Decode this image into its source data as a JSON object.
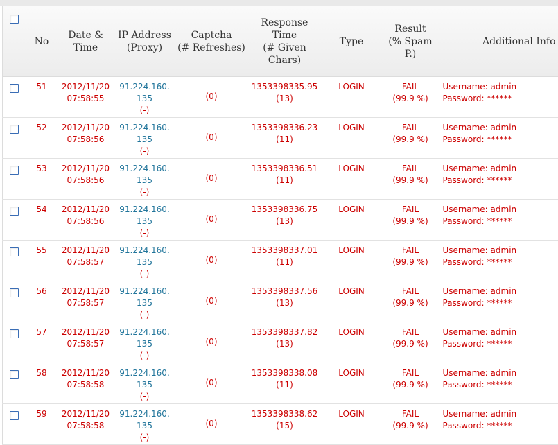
{
  "header": {
    "no": "No",
    "date_line1": "Date &",
    "date_line2": "Time",
    "ip_line1": "IP Address",
    "ip_line2": "(Proxy)",
    "captcha_line1": "Captcha",
    "captcha_line2": "(# Refreshes)",
    "resp_line1": "Response",
    "resp_line2": "Time",
    "resp_line3": "(# Given",
    "resp_line4": "Chars)",
    "type": "Type",
    "result_line1": "Result",
    "result_line2": "(% Spam",
    "result_line3": "P.)",
    "info": "Additional Info"
  },
  "rows": [
    {
      "no": "51",
      "date": "2012/11/20",
      "time": "07:58:55",
      "ip1": "91.224.160.",
      "ip2": "135",
      "proxy": "(-)",
      "captcha": "(0)",
      "response": "1353398335.95",
      "chars": "(13)",
      "type": "LOGIN",
      "result": "FAIL",
      "spam": "(99.9 %)",
      "username": "Username: admin",
      "password": "Password: ******"
    },
    {
      "no": "52",
      "date": "2012/11/20",
      "time": "07:58:56",
      "ip1": "91.224.160.",
      "ip2": "135",
      "proxy": "(-)",
      "captcha": "(0)",
      "response": "1353398336.23",
      "chars": "(11)",
      "type": "LOGIN",
      "result": "FAIL",
      "spam": "(99.9 %)",
      "username": "Username: admin",
      "password": "Password: ******"
    },
    {
      "no": "53",
      "date": "2012/11/20",
      "time": "07:58:56",
      "ip1": "91.224.160.",
      "ip2": "135",
      "proxy": "(-)",
      "captcha": "(0)",
      "response": "1353398336.51",
      "chars": "(11)",
      "type": "LOGIN",
      "result": "FAIL",
      "spam": "(99.9 %)",
      "username": "Username: admin",
      "password": "Password: ******"
    },
    {
      "no": "54",
      "date": "2012/11/20",
      "time": "07:58:56",
      "ip1": "91.224.160.",
      "ip2": "135",
      "proxy": "(-)",
      "captcha": "(0)",
      "response": "1353398336.75",
      "chars": "(13)",
      "type": "LOGIN",
      "result": "FAIL",
      "spam": "(99.9 %)",
      "username": "Username: admin",
      "password": "Password: ******"
    },
    {
      "no": "55",
      "date": "2012/11/20",
      "time": "07:58:57",
      "ip1": "91.224.160.",
      "ip2": "135",
      "proxy": "(-)",
      "captcha": "(0)",
      "response": "1353398337.01",
      "chars": "(11)",
      "type": "LOGIN",
      "result": "FAIL",
      "spam": "(99.9 %)",
      "username": "Username: admin",
      "password": "Password: ******"
    },
    {
      "no": "56",
      "date": "2012/11/20",
      "time": "07:58:57",
      "ip1": "91.224.160.",
      "ip2": "135",
      "proxy": "(-)",
      "captcha": "(0)",
      "response": "1353398337.56",
      "chars": "(13)",
      "type": "LOGIN",
      "result": "FAIL",
      "spam": "(99.9 %)",
      "username": "Username: admin",
      "password": "Password: ******"
    },
    {
      "no": "57",
      "date": "2012/11/20",
      "time": "07:58:57",
      "ip1": "91.224.160.",
      "ip2": "135",
      "proxy": "(-)",
      "captcha": "(0)",
      "response": "1353398337.82",
      "chars": "(13)",
      "type": "LOGIN",
      "result": "FAIL",
      "spam": "(99.9 %)",
      "username": "Username: admin",
      "password": "Password: ******"
    },
    {
      "no": "58",
      "date": "2012/11/20",
      "time": "07:58:58",
      "ip1": "91.224.160.",
      "ip2": "135",
      "proxy": "(-)",
      "captcha": "(0)",
      "response": "1353398338.08",
      "chars": "(11)",
      "type": "LOGIN",
      "result": "FAIL",
      "spam": "(99.9 %)",
      "username": "Username: admin",
      "password": "Password: ******"
    },
    {
      "no": "59",
      "date": "2012/11/20",
      "time": "07:58:58",
      "ip1": "91.224.160.",
      "ip2": "135",
      "proxy": "(-)",
      "captcha": "(0)",
      "response": "1353398338.62",
      "chars": "(15)",
      "type": "LOGIN",
      "result": "FAIL",
      "spam": "(99.9 %)",
      "username": "Username: admin",
      "password": "Password: ******"
    }
  ],
  "colors": {
    "fail_red": "#cc0000",
    "ip_blue": "#21759b",
    "checkbox_border": "#3a6db5"
  }
}
